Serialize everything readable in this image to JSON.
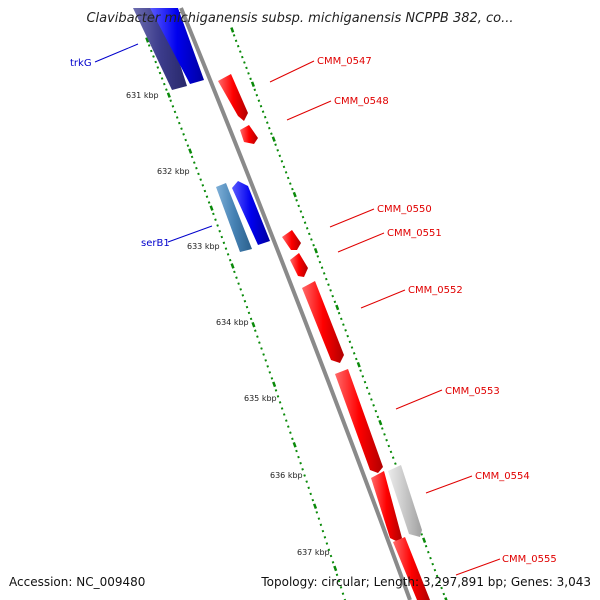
{
  "title": "Clavibacter michiganensis subsp. michiganensis NCPPB 382, co...",
  "footer": {
    "accession": "Accession: NC_009480",
    "topology": "Topology: circular; Length: 3,297,891 bp; Genes: 3,043"
  },
  "ticks": [
    "631 kbp",
    "632 kbp",
    "633 kbp",
    "634 kbp",
    "635 kbp",
    "636 kbp",
    "637 kbp"
  ],
  "genes": [
    {
      "id": "CMM_0547",
      "strand": "plus",
      "color": "#ff0000"
    },
    {
      "id": "CMM_0548",
      "strand": "plus",
      "color": "#ff0000"
    },
    {
      "id": "CMM_0550",
      "strand": "plus",
      "color": "#ff0000"
    },
    {
      "id": "CMM_0551",
      "strand": "plus",
      "color": "#ff0000"
    },
    {
      "id": "CMM_0552",
      "strand": "plus",
      "color": "#ff0000"
    },
    {
      "id": "CMM_0553",
      "strand": "plus",
      "color": "#ff0000"
    },
    {
      "id": "CMM_0554",
      "strand": "plus",
      "color": "#c8c8c8"
    },
    {
      "id": "CMM_0555",
      "strand": "plus",
      "color": "#ff0000"
    },
    {
      "id": "trkG",
      "strand": "minus",
      "color": "#0000ee"
    },
    {
      "id": "serB1",
      "strand": "minus",
      "color": "#0000ee"
    }
  ],
  "colors": {
    "backbone": "#8a8a8a",
    "tick_dots": "#0a8a0a",
    "plus_gene": "#ff0000",
    "minus_gene": "#0000ee",
    "cds_other": "#c8c8c8",
    "label_red": "#e00000",
    "label_blue": "#0000cc"
  }
}
